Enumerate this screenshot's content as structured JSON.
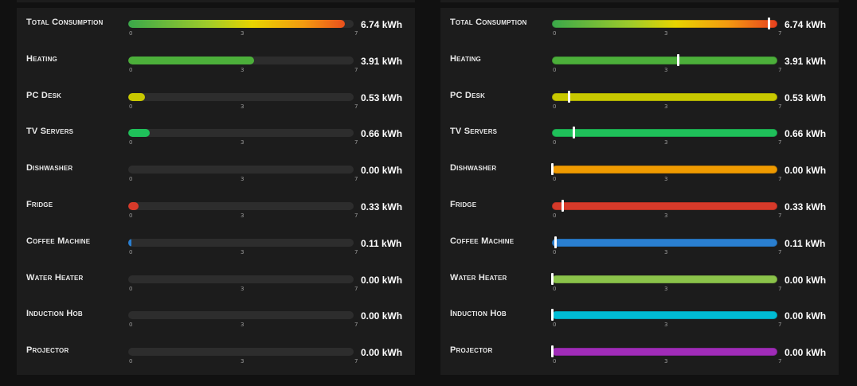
{
  "scale": {
    "min": 0,
    "max": 7,
    "ticks": [
      "0",
      "3",
      "7"
    ]
  },
  "unit": "kWh",
  "left_panel": {
    "style": "fill",
    "items": [
      {
        "name": "Total Consumption",
        "value": 6.74,
        "value_text": "6.74 kWh",
        "color": "gradient"
      },
      {
        "name": "Heating",
        "value": 3.91,
        "value_text": "3.91 kWh",
        "color": "#4caf3a"
      },
      {
        "name": "PC Desk",
        "value": 0.53,
        "value_text": "0.53 kWh",
        "color": "#c8c800"
      },
      {
        "name": "TV Servers",
        "value": 0.66,
        "value_text": "0.66 kWh",
        "color": "#1fc05a"
      },
      {
        "name": "Dishwasher",
        "value": 0.0,
        "value_text": "0.00 kWh",
        "color": "#ef9a00"
      },
      {
        "name": "Fridge",
        "value": 0.33,
        "value_text": "0.33 kWh",
        "color": "#d63a2a"
      },
      {
        "name": "Coffee Machine",
        "value": 0.11,
        "value_text": "0.11 kWh",
        "color": "#2a7fd0"
      },
      {
        "name": "Water Heater",
        "value": 0.0,
        "value_text": "0.00 kWh",
        "color": "#8bc34a"
      },
      {
        "name": "Induction Hob",
        "value": 0.0,
        "value_text": "0.00 kWh",
        "color": "#00bcd4"
      },
      {
        "name": "Projector",
        "value": 0.0,
        "value_text": "0.00 kWh",
        "color": "#a02cb8"
      }
    ]
  },
  "right_panel": {
    "style": "marker",
    "items": [
      {
        "name": "Total Consumption",
        "value": 6.74,
        "value_text": "6.74 kWh",
        "color": "gradient"
      },
      {
        "name": "Heating",
        "value": 3.91,
        "value_text": "3.91 kWh",
        "color": "#4caf3a"
      },
      {
        "name": "PC Desk",
        "value": 0.53,
        "value_text": "0.53 kWh",
        "color": "#c8c800"
      },
      {
        "name": "TV Servers",
        "value": 0.66,
        "value_text": "0.66 kWh",
        "color": "#1fc05a"
      },
      {
        "name": "Dishwasher",
        "value": 0.0,
        "value_text": "0.00 kWh",
        "color": "#ef9a00"
      },
      {
        "name": "Fridge",
        "value": 0.33,
        "value_text": "0.33 kWh",
        "color": "#d63a2a"
      },
      {
        "name": "Coffee Machine",
        "value": 0.11,
        "value_text": "0.11 kWh",
        "color": "#2a7fd0"
      },
      {
        "name": "Water Heater",
        "value": 0.0,
        "value_text": "0.00 kWh",
        "color": "#8bc34a"
      },
      {
        "name": "Induction Hob",
        "value": 0.0,
        "value_text": "0.00 kWh",
        "color": "#00bcd4"
      },
      {
        "name": "Projector",
        "value": 0.0,
        "value_text": "0.00 kWh",
        "color": "#a02cb8"
      }
    ]
  }
}
